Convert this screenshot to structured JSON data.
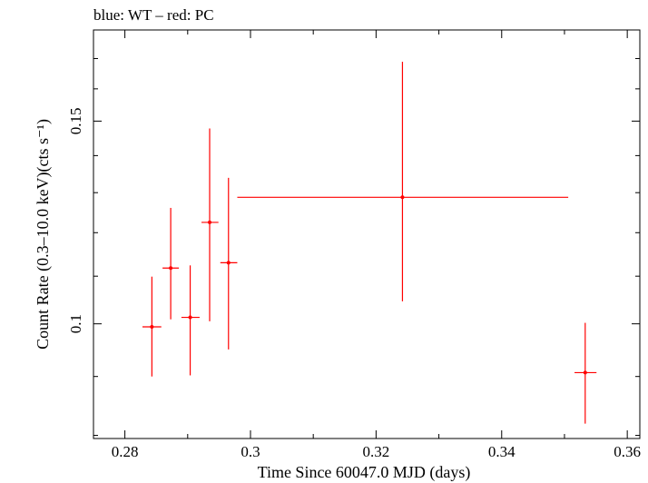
{
  "header": {
    "title": "blue: WT – red: PC"
  },
  "chart_data": {
    "type": "scatter",
    "title": "blue: WT – red: PC",
    "xlabel": "Time Since 60047.0 MJD (days)",
    "ylabel": "Count Rate (0.3–10.0 keV)(cts s⁻¹)",
    "xlim": [
      0.275,
      0.362
    ],
    "ylim": [
      0.0795,
      0.18
    ],
    "yscale": "log",
    "x_ticks": [
      0.28,
      0.29,
      0.3,
      0.31,
      0.32,
      0.33,
      0.34,
      0.35,
      0.36
    ],
    "x_tick_labels": [
      {
        "value": 0.28,
        "label": "0.28"
      },
      {
        "value": 0.3,
        "label": "0.3"
      },
      {
        "value": 0.32,
        "label": "0.32"
      },
      {
        "value": 0.34,
        "label": "0.34"
      },
      {
        "value": 0.36,
        "label": "0.36"
      }
    ],
    "y_ticks": [
      0.08,
      0.09,
      0.1,
      0.11,
      0.12,
      0.13,
      0.14,
      0.15,
      0.16,
      0.17
    ],
    "y_tick_labels": [
      {
        "value": 0.1,
        "label": "0.1"
      },
      {
        "value": 0.15,
        "label": "0.15"
      }
    ],
    "grid": false,
    "legend": "none",
    "series": [
      {
        "color": "#ff0000",
        "points": [
          {
            "x": 0.2843,
            "xerr": [
              0.0015,
              0.0015
            ],
            "y": 0.0994,
            "yerr": [
              0.0094,
              0.0105
            ]
          },
          {
            "x": 0.2873,
            "xerr": [
              0.0013,
              0.0013
            ],
            "y": 0.1118,
            "yerr": [
              0.0109,
              0.0143
            ]
          },
          {
            "x": 0.2904,
            "xerr": [
              0.0014,
              0.0015
            ],
            "y": 0.1013,
            "yerr": [
              0.0111,
              0.0111
            ]
          },
          {
            "x": 0.2935,
            "xerr": [
              0.0013,
              0.0014
            ],
            "y": 0.1225,
            "yerr": [
              0.022,
              0.0253
            ]
          },
          {
            "x": 0.2965,
            "xerr": [
              0.0013,
              0.0014
            ],
            "y": 0.113,
            "yerr": [
              0.018,
              0.0209
            ]
          },
          {
            "x": 0.3242,
            "xerr": [
              0.0263,
              0.0264
            ],
            "y": 0.1288,
            "yerr": [
              0.0242,
              0.0401
            ]
          },
          {
            "x": 0.3533,
            "xerr": [
              0.0017,
              0.0018
            ],
            "y": 0.0907,
            "yerr": [
              0.0088,
              0.0095
            ]
          }
        ]
      }
    ]
  }
}
